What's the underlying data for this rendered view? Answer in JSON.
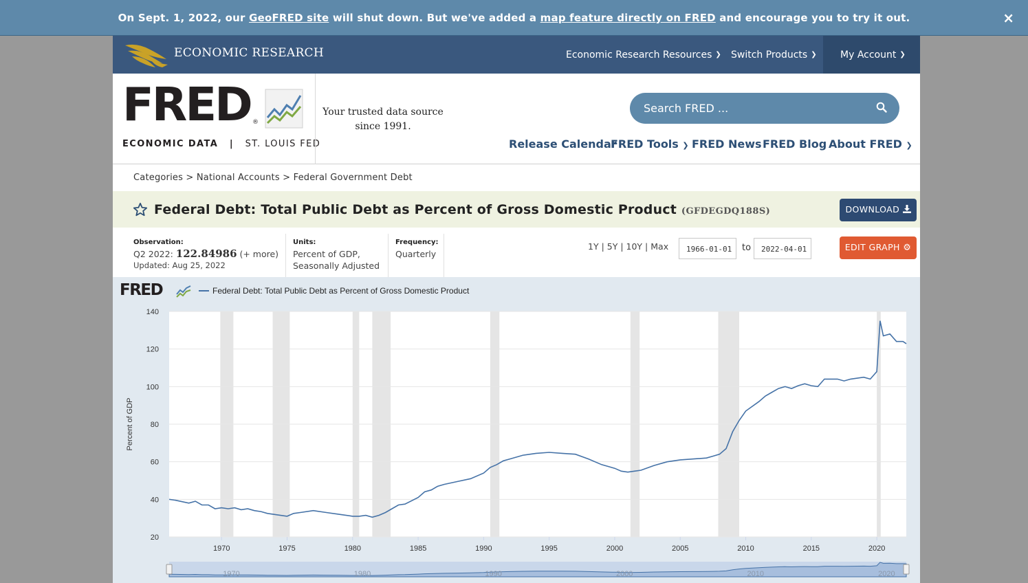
{
  "banner": {
    "pre": "On Sept. 1, 2022, our ",
    "link1": "GeoFRED site",
    "mid": " will shut down. But we've added a ",
    "link2": "map feature directly on FRED",
    "post": " and encourage you to try it out.",
    "close": "×"
  },
  "topbar": {
    "brand": "ECONOMIC RESEARCH",
    "nav": [
      "Economic Research Resources",
      "Switch Products",
      "My Account"
    ]
  },
  "masthead": {
    "logo_word": "FRED",
    "logo_reg": "®",
    "sub_left": "ECONOMIC DATA",
    "sub_sep": "|",
    "sub_right": "ST. LOUIS FED",
    "tagline_1": "Your trusted data source",
    "tagline_2": "since 1991.",
    "search_placeholder": "Search FRED ...",
    "nav": [
      "Release Calendar",
      "FRED Tools",
      "FRED News",
      "FRED Blog",
      "About FRED"
    ]
  },
  "breadcrumb": {
    "items": [
      "Categories",
      "National Accounts",
      "Federal Government Debt"
    ],
    "sep": ">"
  },
  "series": {
    "title": "Federal Debt: Total Public Debt as Percent of Gross Domestic Product",
    "code": "(GFDEGDQ188S)",
    "download": "DOWNLOAD",
    "edit": "EDIT GRAPH",
    "obs_label": "Observation:",
    "obs_period": "Q2 2022:",
    "obs_value": "122.84986",
    "obs_more": "(+ more)",
    "updated": "Updated: Aug 25, 2022",
    "units_label": "Units:",
    "units_1": "Percent of GDP,",
    "units_2": "Seasonally Adjusted",
    "freq_label": "Frequency:",
    "freq": "Quarterly",
    "ranges": [
      "1Y",
      "5Y",
      "10Y",
      "Max"
    ],
    "start_date": "1966-01-01",
    "to": "to",
    "end_date": "2022-04-01"
  },
  "colors": {
    "line": "#4572a7",
    "recession": "#e5e5e5",
    "banner": "#5e89aa",
    "topbar": "#3a587e",
    "edit_button": "#e05a32",
    "download_button": "#2d4a72"
  },
  "chart_data": {
    "type": "line",
    "title": "",
    "legend": "Federal Debt: Total Public Debt as Percent of Gross Domestic Product",
    "xlabel": "",
    "ylabel": "Percent of GDP",
    "xlim": [
      1966.0,
      2022.25
    ],
    "ylim": [
      20,
      140
    ],
    "xticks": [
      1970,
      1975,
      1980,
      1985,
      1990,
      1995,
      2000,
      2005,
      2010,
      2015,
      2020
    ],
    "yticks": [
      20,
      40,
      60,
      80,
      100,
      120,
      140
    ],
    "grid": true,
    "recessions": [
      [
        1969.9,
        1970.9
      ],
      [
        1973.9,
        1975.2
      ],
      [
        1980.0,
        1980.5
      ],
      [
        1981.5,
        1982.9
      ],
      [
        1990.5,
        1991.2
      ],
      [
        2001.2,
        2001.9
      ],
      [
        2007.9,
        2009.5
      ],
      [
        2020.0,
        2020.3
      ]
    ],
    "series": [
      {
        "name": "Federal Debt: Total Public Debt as Percent of Gross Domestic Product",
        "x": [
          1966.0,
          1966.5,
          1967.5,
          1968.0,
          1968.5,
          1969.0,
          1969.5,
          1970.0,
          1970.5,
          1971.0,
          1971.5,
          1972.0,
          1972.5,
          1973.0,
          1973.5,
          1974.0,
          1974.5,
          1975.0,
          1975.5,
          1976.0,
          1977.0,
          1978.0,
          1979.0,
          1980.0,
          1980.5,
          1981.0,
          1981.5,
          1982.0,
          1982.5,
          1983.0,
          1983.5,
          1984.0,
          1985.0,
          1985.5,
          1986.0,
          1986.5,
          1987.0,
          1988.0,
          1989.0,
          1990.0,
          1990.5,
          1991.0,
          1991.5,
          1992.0,
          1993.0,
          1994.0,
          1995.0,
          1996.0,
          1997.0,
          1998.0,
          1999.0,
          2000.0,
          2000.5,
          2001.0,
          2001.5,
          2002.0,
          2003.0,
          2004.0,
          2005.0,
          2006.0,
          2007.0,
          2007.5,
          2008.0,
          2008.5,
          2009.0,
          2009.5,
          2010.0,
          2011.0,
          2011.5,
          2012.0,
          2012.5,
          2013.0,
          2013.5,
          2014.0,
          2014.5,
          2015.0,
          2015.5,
          2016.0,
          2017.0,
          2017.5,
          2018.0,
          2019.0,
          2019.5,
          2019.75,
          2020.0,
          2020.25,
          2020.5,
          2021.0,
          2021.5,
          2022.0,
          2022.25
        ],
        "y": [
          40,
          39.5,
          38,
          39,
          37,
          37,
          35,
          35.5,
          35,
          35.5,
          34.5,
          35,
          34,
          33.5,
          32.5,
          32,
          31.5,
          31,
          32.5,
          33,
          34,
          33,
          32,
          31,
          31,
          31.5,
          30.5,
          31.5,
          33,
          35,
          37,
          37.5,
          41,
          44,
          45,
          47,
          48,
          49.5,
          51,
          54,
          57,
          58.5,
          60.5,
          61.5,
          63.5,
          64.5,
          65,
          64.5,
          64,
          61.5,
          58.5,
          56.5,
          55,
          54.5,
          55,
          55.5,
          58,
          60,
          61,
          61.5,
          62,
          63,
          64,
          67,
          76,
          82,
          87,
          92,
          95,
          97,
          99,
          100,
          99,
          100.5,
          101.5,
          100.5,
          100,
          104,
          104,
          103,
          104,
          105,
          104,
          106,
          108,
          135,
          127,
          128,
          124,
          124,
          122.85
        ]
      }
    ]
  }
}
